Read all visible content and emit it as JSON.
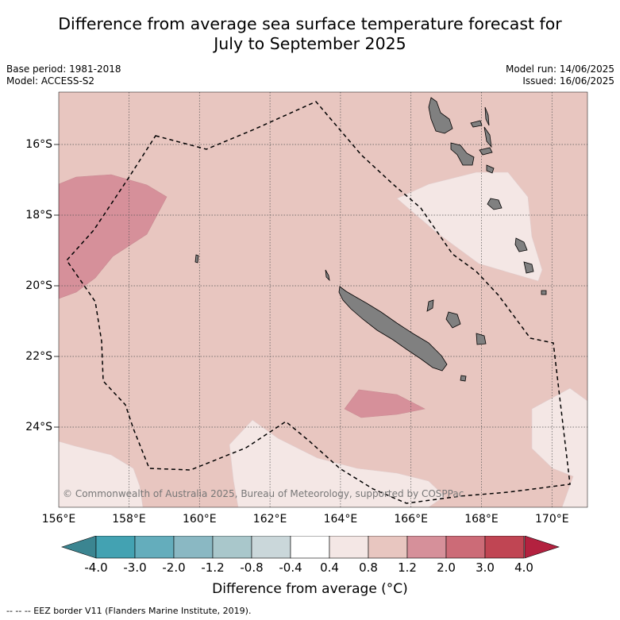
{
  "title_line1": "Difference from average sea surface temperature forecast for",
  "title_line2": "July to September 2025",
  "base_period": "Base period: 1981-2018",
  "model": "Model: ACCESS-S2",
  "model_run": "Model run: 14/06/2025",
  "issued": "Issued: 16/06/2025",
  "copyright": "© Commonwealth of Australia 2025, Bureau of Meteorology, supported by COSPPac",
  "lat_labels": [
    "16°S",
    "18°S",
    "20°S",
    "22°S",
    "24°S"
  ],
  "lon_labels": [
    "156°E",
    "158°E",
    "160°E",
    "162°E",
    "164°E",
    "166°E",
    "168°E",
    "170°E"
  ],
  "colorbar": {
    "ticks": [
      "-4.0",
      "-3.0",
      "-2.0",
      "-1.2",
      "-0.8",
      "-0.4",
      "0.4",
      "0.8",
      "1.2",
      "2.0",
      "3.0",
      "4.0"
    ],
    "colors": [
      "#43a2b2",
      "#64adbc",
      "#8ab8c3",
      "#a9c7cb",
      "#cad7da",
      "#ffffff",
      "#f4e7e5",
      "#e8c6c0",
      "#d6909a",
      "#cc6b77",
      "#c04553"
    ],
    "under_color": "#3b8591",
    "over_color": "#b3213f",
    "label": "Difference from average (°C)"
  },
  "legend_text": "--  --  -- EEZ border V11 (Flanders Marine Institute, 2019)."
}
